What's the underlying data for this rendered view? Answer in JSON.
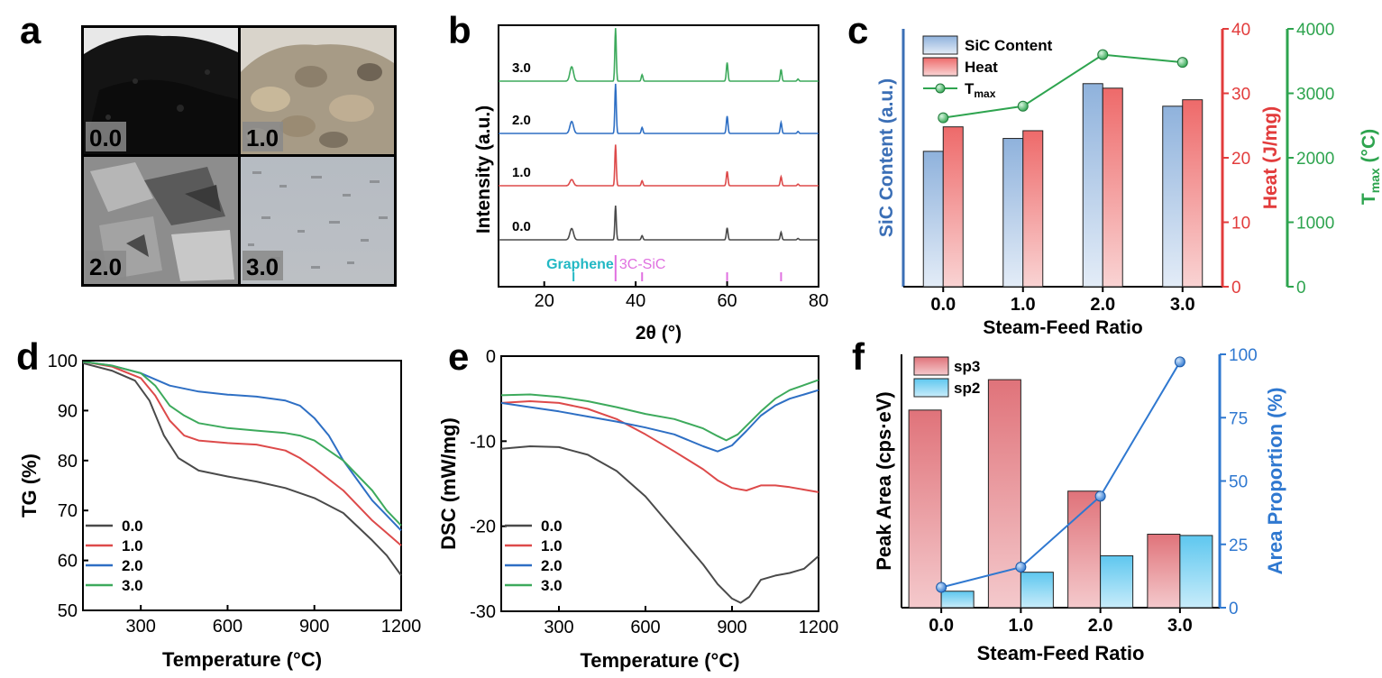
{
  "panel_letters": [
    "a",
    "b",
    "c",
    "d",
    "e",
    "f"
  ],
  "photos": {
    "labels": [
      "0.0",
      "1.0",
      "2.0",
      "3.0"
    ]
  },
  "colors": {
    "c00": "#4a4a4a",
    "c10": "#dd4a4a",
    "c20": "#2e6fc4",
    "c30": "#3daa5c",
    "graphene": "#22b8c4",
    "sic": "#e070e0",
    "sic_axis": "#3b6fb6",
    "heat_axis": "#e23c3c",
    "tmax_axis": "#2ea44f",
    "f_axis": "#2f78d0"
  },
  "chart_data": [
    {
      "id": "b",
      "type": "line",
      "title": "",
      "xlabel": "2θ (°)",
      "ylabel": "Intensity (a.u.)",
      "xlim": [
        10,
        80
      ],
      "xticks": [
        20,
        40,
        60,
        80
      ],
      "peaks": [
        {
          "pos": 26.0,
          "h": 0.3,
          "w": 0.55
        },
        {
          "pos": 35.6,
          "h": 1.0,
          "w": 0.22
        },
        {
          "pos": 41.4,
          "h": 0.12,
          "w": 0.25
        },
        {
          "pos": 60.0,
          "h": 0.35,
          "w": 0.25
        },
        {
          "pos": 71.8,
          "h": 0.22,
          "w": 0.25
        },
        {
          "pos": 75.5,
          "h": 0.04,
          "w": 0.25
        }
      ],
      "series": [
        {
          "name": "0.0",
          "offset": 0.0,
          "scale": 1.0,
          "graphene_scale": 1.1
        },
        {
          "name": "1.0",
          "offset": 1.0,
          "scale": 1.2,
          "graphene_scale": 0.5
        },
        {
          "name": "2.0",
          "offset": 2.0,
          "scale": 1.45,
          "graphene_scale": 0.8
        },
        {
          "name": "3.0",
          "offset": 3.0,
          "scale": 1.55,
          "graphene_scale": 0.9
        }
      ],
      "reference": {
        "graphene_label": "Graphene",
        "sic_label": "3C-SiC",
        "graphene_peaks": [
          26.4
        ],
        "sic_peaks": [
          35.6,
          41.4,
          60.0,
          71.8
        ]
      }
    },
    {
      "id": "c",
      "type": "bar",
      "xlabel": "Steam-Feed Ratio",
      "categories": [
        "0.0",
        "1.0",
        "2.0",
        "3.0"
      ],
      "series": [
        {
          "name": "SiC Content",
          "axis": "left",
          "values": [
            21,
            23,
            31.5,
            28
          ],
          "ylabel": "SiC Content (a.u.)"
        },
        {
          "name": "Heat",
          "axis": "right1",
          "values": [
            24.8,
            24.2,
            30.8,
            29.0
          ],
          "ylabel": "Heat (J/mg)",
          "ylim": [
            0,
            40
          ],
          "yticks": [
            0,
            10,
            20,
            30,
            40
          ]
        },
        {
          "name": "T",
          "name_sub": "max",
          "axis": "right2",
          "type": "line",
          "values": [
            2620,
            2800,
            3600,
            3480
          ],
          "ylabel": "T",
          "ylabel_sub": "max",
          "ylabel_unit": " (°C)",
          "ylim": [
            0,
            4000
          ],
          "yticks": [
            0,
            1000,
            2000,
            3000,
            4000
          ]
        }
      ],
      "left_ylim": [
        0,
        40
      ]
    },
    {
      "id": "d",
      "type": "line",
      "xlabel": "Temperature (°C)",
      "ylabel": "TG (%)",
      "xlim": [
        100,
        1200
      ],
      "ylim": [
        50,
        100
      ],
      "xticks": [
        300,
        600,
        900,
        1200
      ],
      "yticks": [
        50,
        60,
        70,
        80,
        90,
        100
      ],
      "series": [
        {
          "name": "0.0",
          "x": [
            100,
            200,
            280,
            330,
            380,
            430,
            500,
            600,
            700,
            800,
            900,
            1000,
            1100,
            1150,
            1200
          ],
          "y": [
            99.5,
            98,
            96,
            92,
            85,
            80.5,
            78,
            76.8,
            75.8,
            74.5,
            72.5,
            69.5,
            64,
            61,
            57
          ]
        },
        {
          "name": "1.0",
          "x": [
            100,
            200,
            300,
            350,
            400,
            450,
            500,
            600,
            700,
            800,
            850,
            900,
            1000,
            1100,
            1150,
            1200
          ],
          "y": [
            99.8,
            98.8,
            96.5,
            93,
            88,
            85,
            84,
            83.5,
            83.2,
            82,
            80.5,
            78.5,
            74,
            68,
            65.5,
            63
          ]
        },
        {
          "name": "2.0",
          "x": [
            100,
            200,
            300,
            400,
            500,
            600,
            700,
            800,
            850,
            900,
            950,
            1000,
            1050,
            1100,
            1150,
            1200
          ],
          "y": [
            99.8,
            99,
            97.5,
            95,
            93.8,
            93.2,
            92.8,
            92,
            91,
            88.5,
            85,
            80,
            76,
            72,
            69,
            66
          ]
        },
        {
          "name": "3.0",
          "x": [
            100,
            200,
            300,
            350,
            400,
            450,
            500,
            600,
            700,
            800,
            850,
            900,
            1000,
            1100,
            1150,
            1200
          ],
          "y": [
            99.8,
            99,
            97.5,
            95,
            91,
            89,
            87.5,
            86.5,
            86,
            85.5,
            85,
            84,
            80,
            74,
            70,
            67
          ]
        }
      ],
      "legend": [
        "0.0",
        "1.0",
        "2.0",
        "3.0"
      ]
    },
    {
      "id": "e",
      "type": "line",
      "xlabel": "Temperature (°C)",
      "ylabel": "DSC (mW/mg)",
      "xlim": [
        100,
        1200
      ],
      "ylim": [
        -30,
        0
      ],
      "xticks": [
        300,
        600,
        900,
        1200
      ],
      "yticks": [
        -30,
        -20,
        -10,
        0
      ],
      "series": [
        {
          "name": "0.0",
          "x": [
            100,
            200,
            300,
            400,
            500,
            600,
            700,
            800,
            850,
            900,
            930,
            960,
            1000,
            1050,
            1100,
            1150,
            1200
          ],
          "y": [
            -10.9,
            -10.6,
            -10.7,
            -11.6,
            -13.5,
            -16.5,
            -20.5,
            -24.5,
            -26.8,
            -28.5,
            -29,
            -28.3,
            -26.3,
            -25.8,
            -25.5,
            -25,
            -23.5
          ]
        },
        {
          "name": "1.0",
          "x": [
            100,
            200,
            300,
            400,
            500,
            600,
            700,
            800,
            850,
            900,
            950,
            1000,
            1050,
            1100,
            1150,
            1200
          ],
          "y": [
            -5.5,
            -5.3,
            -5.5,
            -6.2,
            -7.4,
            -9.2,
            -11.2,
            -13.3,
            -14.6,
            -15.5,
            -15.8,
            -15.2,
            -15.2,
            -15.4,
            -15.7,
            -16
          ]
        },
        {
          "name": "2.0",
          "x": [
            100,
            200,
            300,
            400,
            500,
            600,
            700,
            800,
            850,
            900,
            950,
            1000,
            1050,
            1100,
            1150,
            1200
          ],
          "y": [
            -5.5,
            -6,
            -6.5,
            -7.1,
            -7.7,
            -8.4,
            -9.2,
            -10.6,
            -11.2,
            -10.5,
            -8.8,
            -7,
            -5.8,
            -5,
            -4.5,
            -4
          ]
        },
        {
          "name": "3.0",
          "x": [
            100,
            200,
            300,
            400,
            500,
            600,
            700,
            800,
            850,
            880,
            920,
            1000,
            1050,
            1100,
            1150,
            1200
          ],
          "y": [
            -4.6,
            -4.5,
            -4.8,
            -5.3,
            -6,
            -6.8,
            -7.4,
            -8.5,
            -9.4,
            -9.9,
            -9.2,
            -6.5,
            -5,
            -4,
            -3.4,
            -2.8
          ]
        }
      ],
      "legend": [
        "0.0",
        "1.0",
        "2.0",
        "3.0"
      ]
    },
    {
      "id": "f",
      "type": "bar",
      "xlabel": "Steam-Feed Ratio",
      "categories": [
        "0.0",
        "1.0",
        "2.0",
        "3.0"
      ],
      "series": [
        {
          "name": "sp3",
          "axis": "left",
          "values": [
            78,
            90,
            46,
            29
          ]
        },
        {
          "name": "sp2",
          "axis": "left",
          "values": [
            6.5,
            14,
            20.5,
            28.5
          ]
        },
        {
          "name": "Area Proportion",
          "axis": "right",
          "type": "line",
          "values": [
            8,
            16,
            44,
            97
          ]
        }
      ],
      "left_ylabel": "Peak Area (cps·eV)",
      "left_ylim": [
        0,
        100
      ],
      "right_ylabel": "Area Proportion (%)",
      "right_ylim": [
        0,
        100
      ],
      "right_yticks": [
        0,
        25,
        50,
        75,
        100
      ]
    }
  ]
}
